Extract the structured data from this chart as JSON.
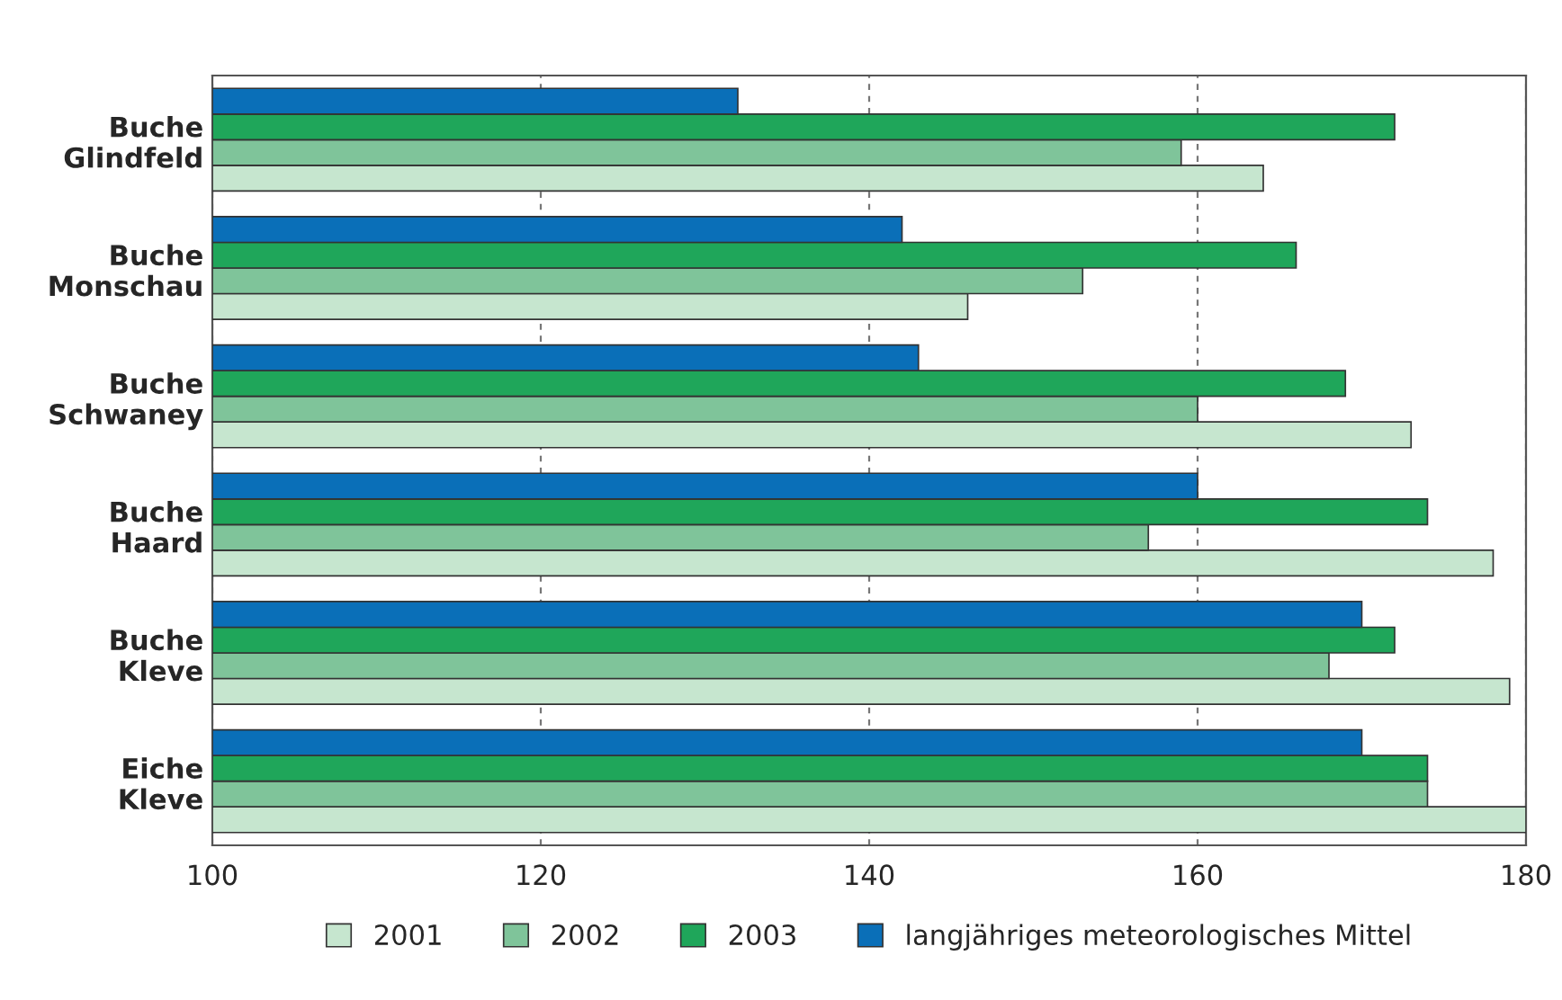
{
  "chart_data": {
    "type": "bar",
    "orientation": "horizontal",
    "categories": [
      "Buche\nGlindfeld",
      "Buche\nMonschau",
      "Buche\nSchwaney",
      "Buche\nHaard",
      "Buche\nKleve",
      "Eiche\nKleve"
    ],
    "series": [
      {
        "name": "2001",
        "color": "#c6e6cf",
        "values": [
          164,
          146,
          173,
          178,
          179,
          180
        ]
      },
      {
        "name": "2002",
        "color": "#7fc49a",
        "values": [
          159,
          153,
          160,
          157,
          168,
          174
        ]
      },
      {
        "name": "2003",
        "color": "#1fa65a",
        "values": [
          172,
          166,
          169,
          174,
          172,
          174
        ]
      },
      {
        "name": "langjähriges meteorologisches Mittel",
        "color": "#0a6fb8",
        "values": [
          132,
          142,
          143,
          160,
          170,
          170
        ]
      }
    ],
    "xlim": [
      100,
      180
    ],
    "xticks": [
      100,
      120,
      140,
      160,
      180
    ],
    "grid": "x",
    "legend": "bottom"
  }
}
